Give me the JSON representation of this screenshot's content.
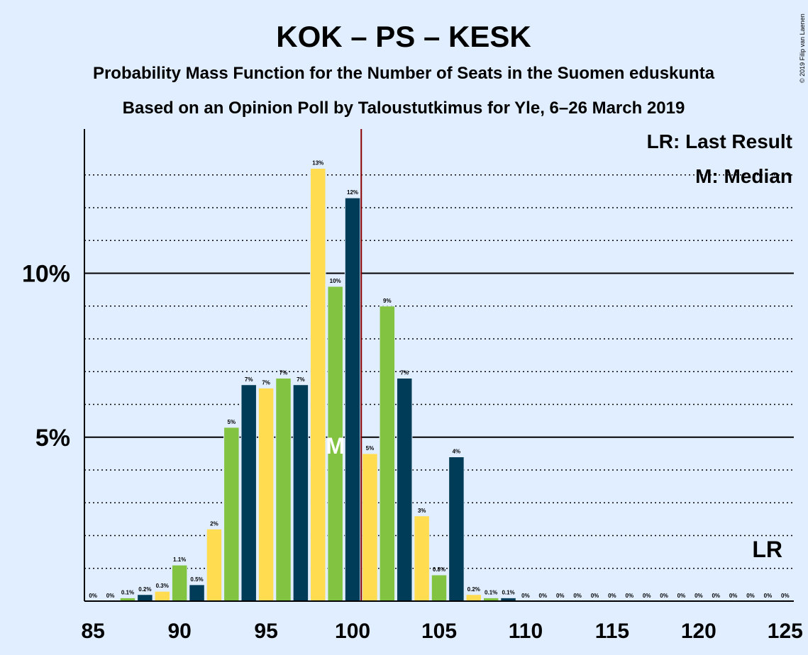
{
  "chart_data": {
    "type": "bar",
    "title": "KOK – PS – KESK",
    "subtitle_1": "Probability Mass Function for the Number of Seats in the Suomen eduskunta",
    "subtitle_2": "Based on an Opinion Poll by Taloustutkimus for Yle, 6–26 March 2019",
    "copyright": "© 2019 Filip van Laenen",
    "x": [
      85,
      86,
      87,
      88,
      89,
      90,
      91,
      92,
      93,
      94,
      95,
      96,
      97,
      98,
      99,
      100,
      101,
      102,
      103,
      104,
      105,
      106,
      107,
      108,
      109,
      110,
      111,
      112,
      113,
      114,
      115,
      116,
      117,
      118,
      119,
      120,
      121,
      122,
      123,
      124,
      125
    ],
    "values": [
      0,
      0,
      0.1,
      0.2,
      0.3,
      1.1,
      0.5,
      2.2,
      5.3,
      6.6,
      6.5,
      6.8,
      6.6,
      13.2,
      9.6,
      12.3,
      4.5,
      9.0,
      6.8,
      2.6,
      0.8,
      4.4,
      0.2,
      0.1,
      0.1,
      0,
      0,
      0,
      0,
      0,
      0,
      0,
      0,
      0,
      0,
      0,
      0,
      0,
      0,
      0,
      0
    ],
    "labels": [
      "0%",
      "0%",
      "0.1%",
      "0.2%",
      "0.3%",
      "1.1%",
      "0.5%",
      "2%",
      "5%",
      "7%",
      "7%",
      "7%",
      "7%",
      "13%",
      "10%",
      "12%",
      "5%",
      "9%",
      "7%",
      "3%",
      "0.8%",
      "4%",
      "0.2%",
      "0.1%",
      "0.1%",
      "0%",
      "0%",
      "0%",
      "0%",
      "0%",
      "0%",
      "0%",
      "0%",
      "0%",
      "0%",
      "0%",
      "0%",
      "0%",
      "0%",
      "0%",
      "0%"
    ],
    "xticks": [
      85,
      90,
      95,
      100,
      105,
      110,
      115,
      120,
      125
    ],
    "yticks": [
      {
        "value": 5,
        "label": "5%"
      },
      {
        "value": 10,
        "label": "10%"
      }
    ],
    "xlim": [
      85,
      125
    ],
    "ylim": [
      0,
      14.4
    ],
    "last_result_seat": 100.5,
    "median_seat": 99,
    "median_marker": "M",
    "last_result_marker": "LR",
    "legend": [
      "LR: Last Result",
      "M: Median"
    ],
    "legend_position": "top-right",
    "colors": {
      "background": "#e0eeff",
      "bar_palette": [
        "#82c341",
        "#003b57",
        "#ffdc50"
      ],
      "last_result_line": "#8b0000",
      "axis": "#000000"
    }
  }
}
